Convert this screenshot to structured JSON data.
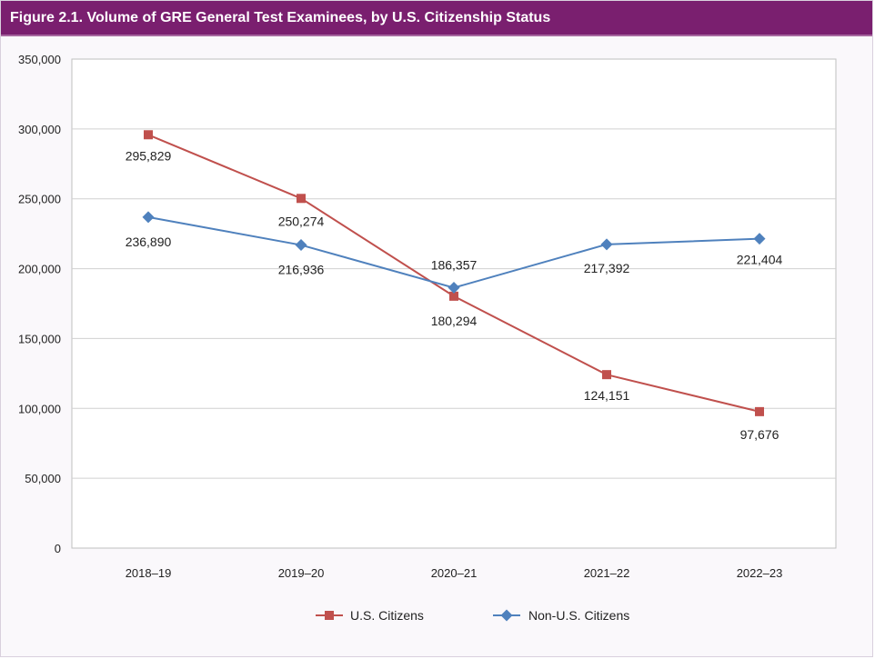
{
  "title": "Figure 2.1. Volume of GRE General Test Examinees, by U.S. Citizenship Status",
  "chart_data": {
    "type": "line",
    "title": "Figure 2.1. Volume of GRE General Test Examinees, by U.S. Citizenship Status",
    "categories": [
      "2018–19",
      "2019–20",
      "2020–21",
      "2021–22",
      "2022–23"
    ],
    "ylim": [
      0,
      350000
    ],
    "y_ticks": [
      "0",
      "50,000",
      "100,000",
      "150,000",
      "200,000",
      "250,000",
      "300,000",
      "350,000"
    ],
    "grid": true,
    "legend_position": "bottom",
    "series": [
      {
        "name": "U.S. Citizens",
        "color": "#c0504d",
        "marker": "square",
        "values": [
          295829,
          250274,
          180294,
          124151,
          97676
        ],
        "labels": [
          "295,829",
          "250,274",
          "180,294",
          "124,151",
          "97,676"
        ]
      },
      {
        "name": "Non-U.S. Citizens",
        "color": "#4f81bd",
        "marker": "diamond",
        "values": [
          236890,
          216936,
          186357,
          217392,
          221404
        ],
        "labels": [
          "236,890",
          "216,936",
          "186,357",
          "217,392",
          "221,404"
        ]
      }
    ]
  }
}
